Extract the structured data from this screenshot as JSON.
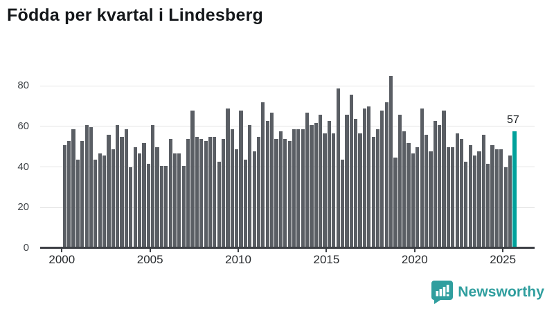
{
  "title": "Födda per kvartal i Lindesberg",
  "footer": {
    "brand": "Newsworthy"
  },
  "colors": {
    "bar": "#5a5e64",
    "highlight": "#00a19b",
    "gridline": "#e4e4e4",
    "axis": "#3d4045",
    "brand_teal": "#2f9e9e"
  },
  "chart_data": {
    "type": "bar",
    "title": "Födda per kvartal i Lindesberg",
    "xlabel": "",
    "ylabel": "",
    "x_unit": "quarter",
    "start_period": "2000-Q1",
    "end_period": "2025-Q3",
    "ylim": [
      0,
      85
    ],
    "grid": true,
    "y_ticks": [
      0,
      20,
      40,
      60,
      80
    ],
    "x_tick_labels": [
      "2000",
      "2005",
      "2010",
      "2015",
      "2020",
      "2025"
    ],
    "values": [
      50,
      52,
      58,
      43,
      52,
      60,
      59,
      43,
      46,
      45,
      55,
      48,
      60,
      54,
      58,
      39,
      49,
      46,
      51,
      41,
      60,
      49,
      40,
      40,
      53,
      46,
      46,
      40,
      53,
      67,
      54,
      53,
      52,
      54,
      54,
      42,
      53,
      68,
      58,
      48,
      67,
      43,
      60,
      47,
      54,
      71,
      62,
      66,
      53,
      57,
      53,
      52,
      58,
      58,
      58,
      66,
      60,
      61,
      65,
      56,
      62,
      56,
      78,
      43,
      65,
      75,
      63,
      56,
      68,
      69,
      54,
      58,
      67,
      71,
      84,
      44,
      65,
      57,
      51,
      46,
      49,
      68,
      55,
      47,
      62,
      60,
      67,
      49,
      49,
      56,
      53,
      42,
      50,
      45,
      47,
      55,
      41,
      50,
      48,
      48,
      39,
      45,
      57
    ],
    "highlight": {
      "index": 102,
      "value": 57,
      "label": "57"
    }
  }
}
